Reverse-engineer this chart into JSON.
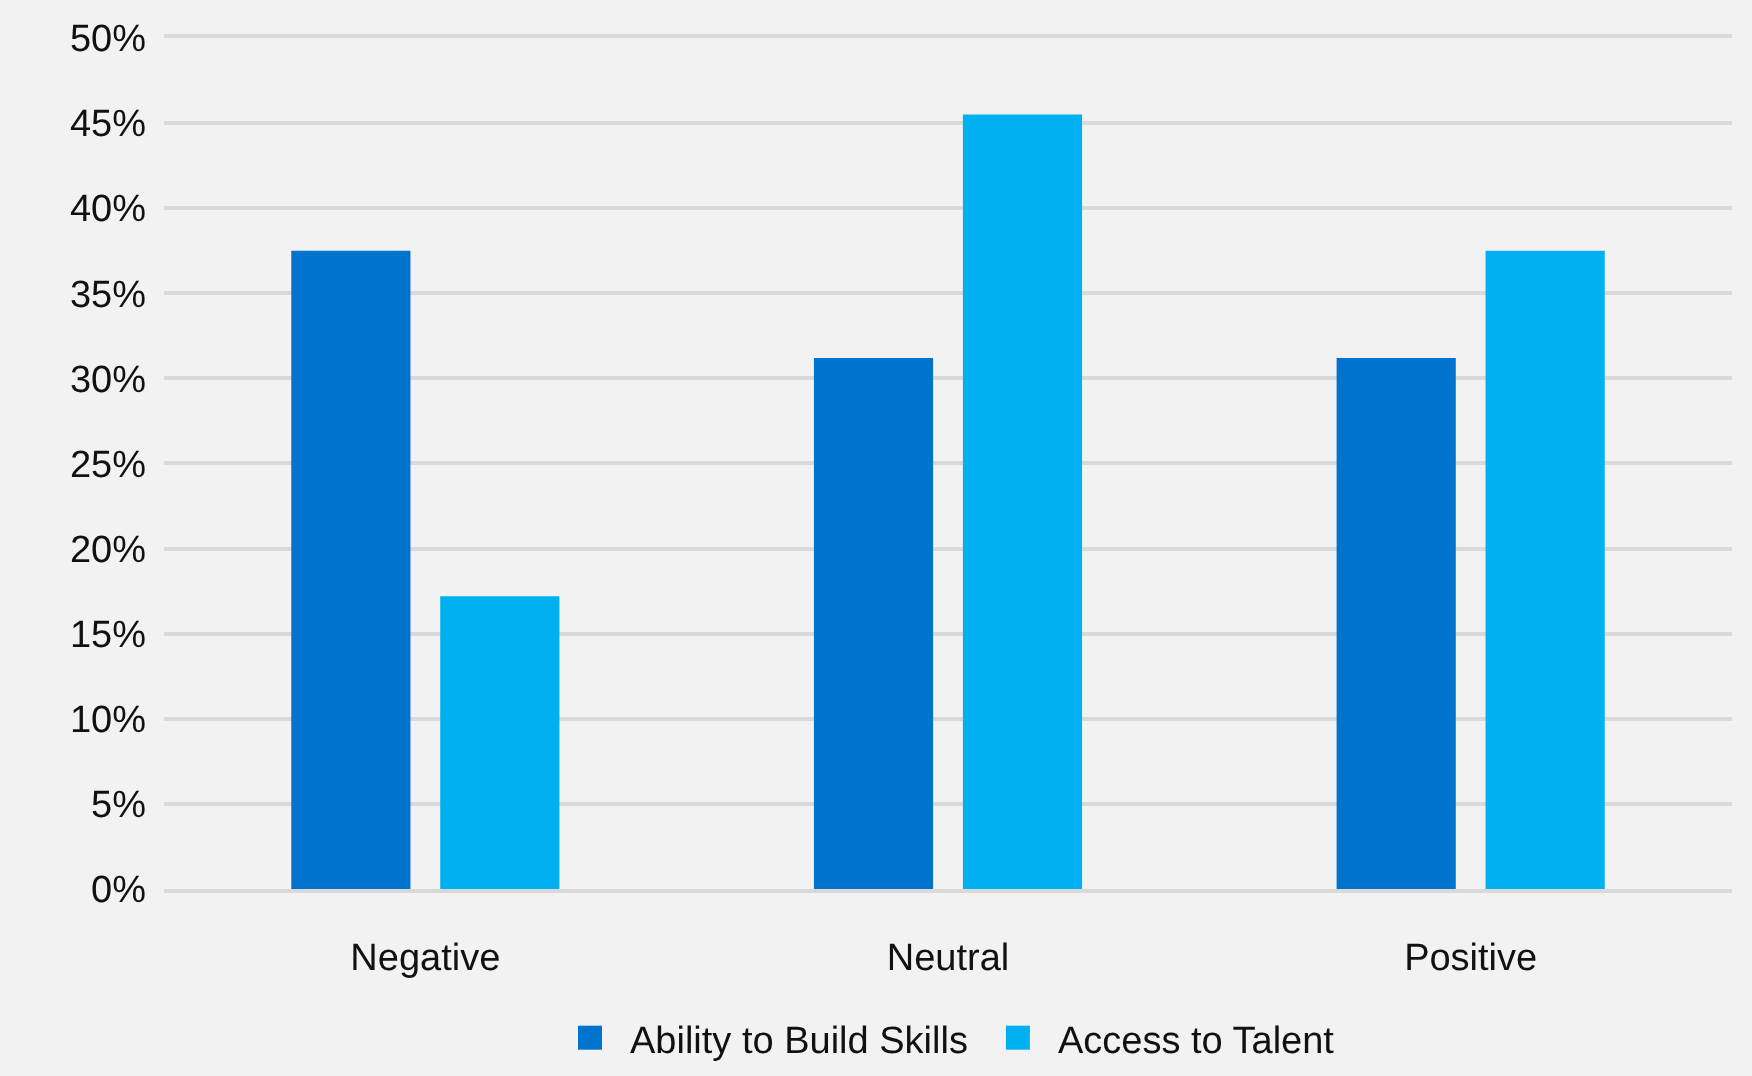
{
  "chart_data": {
    "type": "bar",
    "categories": [
      "Negative",
      "Neutral",
      "Positive"
    ],
    "series": [
      {
        "name": "Ability to Build Skills",
        "color": "#0074cc",
        "values": [
          37.5,
          31.2,
          31.2
        ]
      },
      {
        "name": "Access to Talent",
        "color": "#00b0f0",
        "values": [
          17.2,
          45.5,
          37.5
        ]
      }
    ],
    "ylim": [
      0,
      50
    ],
    "yticks": [
      {
        "value": 0,
        "label": "0%"
      },
      {
        "value": 5,
        "label": "5%"
      },
      {
        "value": 10,
        "label": "10%"
      },
      {
        "value": 15,
        "label": "15%"
      },
      {
        "value": 20,
        "label": "20%"
      },
      {
        "value": 25,
        "label": "25%"
      },
      {
        "value": 30,
        "label": "30%"
      },
      {
        "value": 35,
        "label": "35%"
      },
      {
        "value": 40,
        "label": "40%"
      },
      {
        "value": 45,
        "label": "45%"
      },
      {
        "value": 50,
        "label": "50%"
      }
    ],
    "grid": "y",
    "legend": "bottom"
  }
}
